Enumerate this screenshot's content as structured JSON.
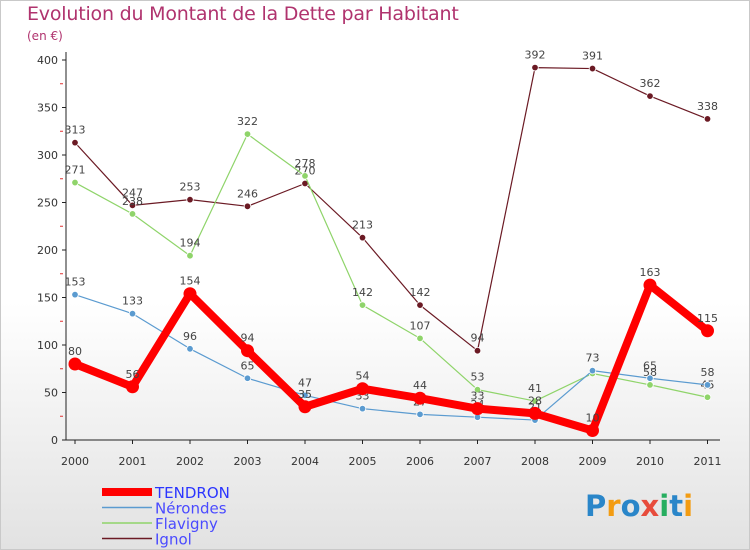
{
  "header": {
    "title": "Evolution du Montant de la Dette par Habitant",
    "unit": "(en €)"
  },
  "brand": {
    "text": "Proxiti",
    "colors": [
      "#2a86c9",
      "#f39c12",
      "#2a86c9",
      "#e74c3c",
      "#27ae60",
      "#2a86c9",
      "#f39c12"
    ]
  },
  "chart_data": {
    "type": "line",
    "title": "Evolution du Montant de la Dette par Habitant",
    "ylabel": "(en €)",
    "xlabel": "",
    "ylim": [
      0,
      400
    ],
    "yticks": [
      0,
      50,
      100,
      150,
      200,
      250,
      300,
      350,
      400
    ],
    "x": [
      "2000",
      "2001",
      "2002",
      "2003",
      "2004",
      "2005",
      "2006",
      "2007",
      "2008",
      "2009",
      "2010",
      "2011"
    ],
    "grid": false,
    "legend": "bottom-left",
    "series": [
      {
        "name": "Ignol",
        "color": "#6b1a24",
        "values": [
          313,
          247,
          253,
          246,
          270,
          213,
          142,
          94,
          392,
          391,
          362,
          338
        ],
        "labels": [
          "313",
          "247",
          "253",
          "246",
          "270",
          "213",
          "142",
          "94",
          "392",
          "391",
          "362",
          "338"
        ]
      },
      {
        "name": "Flavigny",
        "color": "#8fd46a",
        "values": [
          271,
          238,
          194,
          322,
          278,
          142,
          107,
          53,
          41,
          70,
          58,
          45
        ],
        "labels": [
          "271",
          "238",
          "194",
          "322",
          "278",
          "142",
          "107",
          "53",
          "41",
          "",
          "58",
          "45"
        ]
      },
      {
        "name": "Nérondes",
        "color": "#5b9bd0",
        "values": [
          153,
          133,
          96,
          65,
          47,
          33,
          27,
          24,
          21,
          73,
          65,
          58
        ],
        "labels": [
          "153",
          "133",
          "96",
          "65",
          "47",
          "33",
          "27",
          "24",
          "21",
          "73",
          "65",
          "58"
        ]
      },
      {
        "name": "TENDRON",
        "color": "#ff0000",
        "values": [
          80,
          56,
          154,
          94,
          35,
          54,
          44,
          33,
          28,
          10,
          163,
          115
        ],
        "labels": [
          "80",
          "56",
          "154",
          "94",
          "35",
          "54",
          "44",
          "33",
          "28",
          "10",
          "163",
          "115"
        ]
      }
    ],
    "legend_order": [
      "TENDRON",
      "Nérondes",
      "Flavigny",
      "Ignol"
    ]
  }
}
